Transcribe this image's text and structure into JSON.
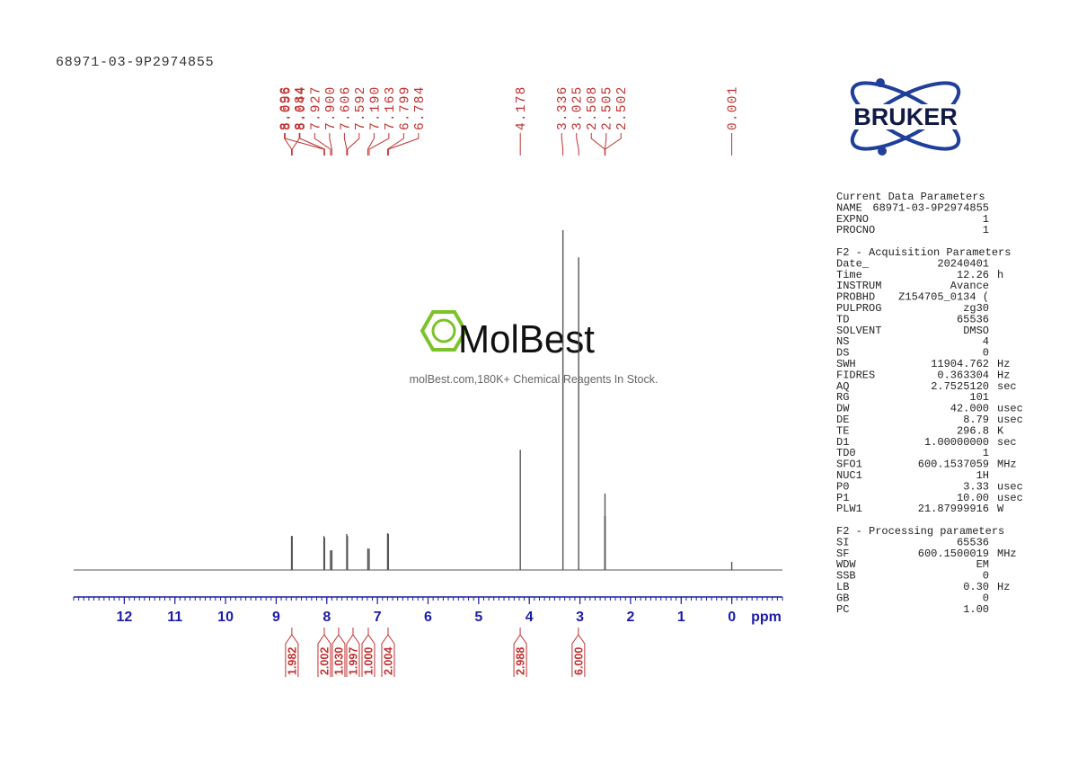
{
  "sample_id": "68971-03-9P2974855",
  "watermark": {
    "brand": "MolBest",
    "tagline": "molBest.com,180K+ Chemical Reagents In Stock."
  },
  "vendor_logo": "BRUKER",
  "chart_data": {
    "type": "spectrum",
    "x_label": "ppm",
    "xlim": [
      13,
      -1
    ],
    "xticks": [
      12,
      11,
      10,
      9,
      8,
      7,
      6,
      5,
      4,
      3,
      2,
      1,
      0
    ],
    "minor_tick_interval": 0.1,
    "color": "#555555",
    "label_color": "#c0302f",
    "axis_color": "#1c1ca8",
    "series": [
      {
        "x": [
          8.696,
          8.684,
          8.056,
          8.044,
          7.927,
          7.9,
          7.606,
          7.592,
          7.19,
          7.163,
          6.799,
          6.784,
          4.178,
          3.336,
          3.025,
          2.508,
          2.505,
          2.502,
          0.001
        ],
        "x_labels": [
          "8.696",
          "8.684",
          "8.056",
          "8.044",
          "7.927",
          "7.900",
          "7.606",
          "7.592",
          "7.190",
          "7.163",
          "6.799",
          "6.784",
          "4.178",
          "3.336",
          "3.025",
          "2.508",
          "2.505",
          "2.502",
          "0.001"
        ],
        "values": [
          10,
          10,
          10,
          9.5,
          5.8,
          5.8,
          10.6,
          10,
          6.3,
          6.3,
          10.8,
          10.6,
          35.4,
          100,
          92,
          15.9,
          22.5,
          15.9,
          2.4
        ]
      }
    ],
    "integrals": {
      "x": [
        8.69,
        8.05,
        7.91,
        7.6,
        7.18,
        6.79,
        4.18,
        3.03
      ],
      "values": [
        1.982,
        2.002,
        1.03,
        1.997,
        1,
        2.004,
        2.988,
        6
      ],
      "value_labels": [
        "1.982",
        "2.002",
        "1.030",
        "1.997",
        "1.000",
        "2.004",
        "2.988",
        "6.000"
      ]
    }
  },
  "parameters": [
    {
      "title": "Current Data Parameters",
      "rows": [
        [
          "NAME",
          "68971-03-9P2974855"
        ],
        [
          "EXPNO",
          "1"
        ],
        [
          "PROCNO",
          "1"
        ]
      ]
    },
    {
      "title": "F2 - Acquisition Parameters",
      "rows": [
        [
          "Date_",
          "20240401"
        ],
        [
          "Time",
          "12.26",
          "h"
        ],
        [
          "INSTRUM",
          "Avance"
        ],
        [
          "PROBHD",
          "Z154705_0134 ("
        ],
        [
          "PULPROG",
          "zg30"
        ],
        [
          "TD",
          "65536"
        ],
        [
          "SOLVENT",
          "DMSO"
        ],
        [
          "NS",
          "4"
        ],
        [
          "DS",
          "0"
        ],
        [
          "SWH",
          "11904.762",
          "Hz"
        ],
        [
          "FIDRES",
          "0.363304",
          "Hz"
        ],
        [
          "AQ",
          "2.7525120",
          "sec"
        ],
        [
          "RG",
          "101"
        ],
        [
          "DW",
          "42.000",
          "usec"
        ],
        [
          "DE",
          "8.79",
          "usec"
        ],
        [
          "TE",
          "296.8",
          "K"
        ],
        [
          "D1",
          "1.00000000",
          "sec"
        ],
        [
          "TD0",
          "1"
        ],
        [
          "SFO1",
          "600.1537059",
          "MHz"
        ],
        [
          "NUC1",
          "1H"
        ],
        [
          "P0",
          "3.33",
          "usec"
        ],
        [
          "P1",
          "10.00",
          "usec"
        ],
        [
          "PLW1",
          "21.87999916",
          "W"
        ]
      ]
    },
    {
      "title": "F2 - Processing parameters",
      "rows": [
        [
          "SI",
          "65536"
        ],
        [
          "SF",
          "600.1500019",
          "MHz"
        ],
        [
          "WDW",
          "EM"
        ],
        [
          "SSB",
          "0"
        ],
        [
          "LB",
          "0.30",
          "Hz"
        ],
        [
          "GB",
          "0"
        ],
        [
          "PC",
          "1.00"
        ]
      ]
    }
  ]
}
